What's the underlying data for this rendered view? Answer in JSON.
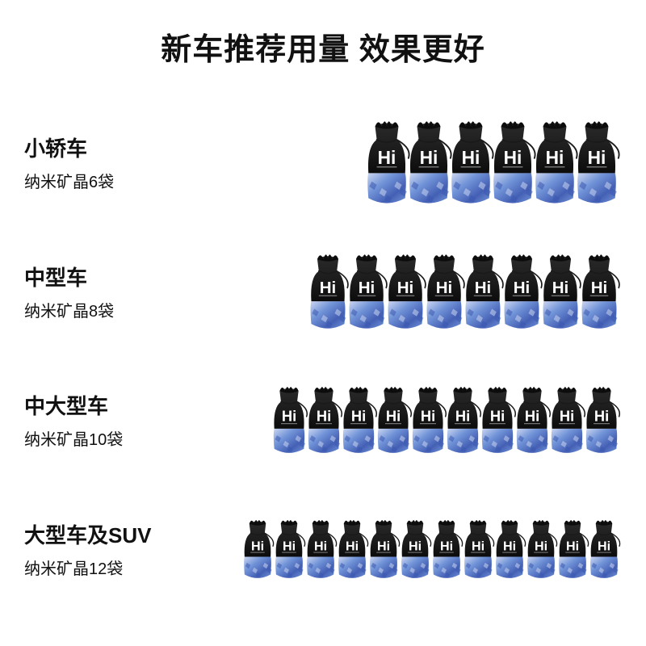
{
  "title": "新车推荐用量 效果更好",
  "title_fontsize": 38,
  "label_title_fontsize": 26,
  "label_sub_fontsize": 20,
  "bag": {
    "label_text": "Hi",
    "top_color": "#1a1a1a",
    "top_color_dark": "#0c0c0c",
    "mesh_overlay": "#2a2a2a",
    "bottom_color_a": "#6b8fd6",
    "bottom_color_b": "#3a57b0",
    "bottom_light": "#c9d4f0",
    "label_text_color": "#ffffff",
    "string_color": "#1a1a1a"
  },
  "rows": [
    {
      "title": "小轿车",
      "sub": "纳米矿晶6袋",
      "count": 6,
      "bag_width": 62,
      "bag_height": 118,
      "bag_overlap": -10
    },
    {
      "title": "中型车",
      "sub": "纳米矿晶8袋",
      "count": 8,
      "bag_width": 56,
      "bag_height": 110,
      "bag_overlap": -8
    },
    {
      "title": "中大型车",
      "sub": "纳米矿晶10袋",
      "count": 10,
      "bag_width": 50,
      "bag_height": 104,
      "bag_overlap": -7
    },
    {
      "title": "大型车及SUV",
      "sub": "纳米矿晶12袋",
      "count": 12,
      "bag_width": 44,
      "bag_height": 96,
      "bag_overlap": -5
    }
  ],
  "background_color": "#ffffff"
}
